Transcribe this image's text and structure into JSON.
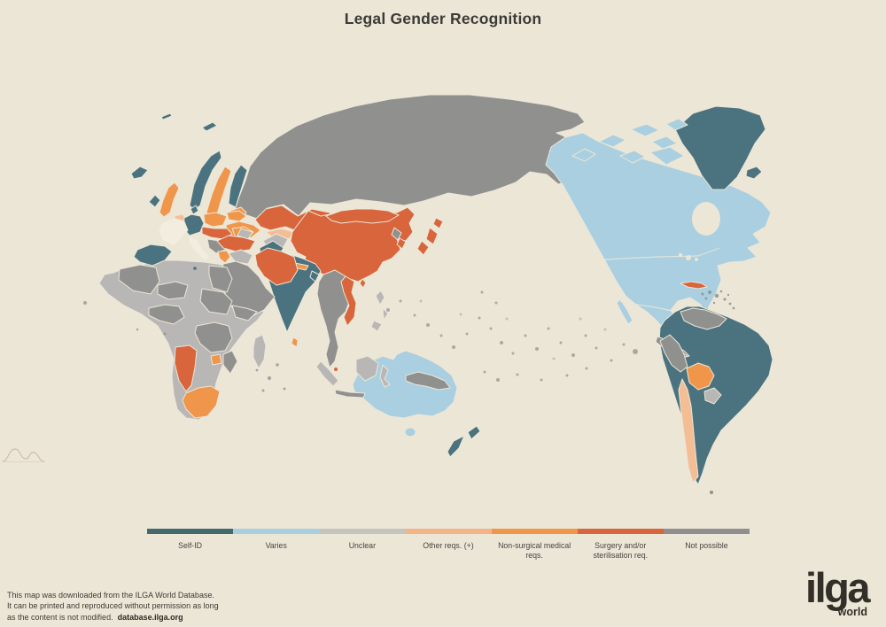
{
  "page": {
    "background": "#ECE6D7"
  },
  "title": "Legal Gender Recognition",
  "legend": {
    "categories": [
      {
        "id": "self_id",
        "label": "Self-ID",
        "color": "#456A6E"
      },
      {
        "id": "varies",
        "label": "Varies",
        "color": "#A8CEDF"
      },
      {
        "id": "unclear",
        "label": "Unclear",
        "color": "#C6C4BE"
      },
      {
        "id": "other_reqs",
        "label": "Other reqs. (+)",
        "color": "#F2B488"
      },
      {
        "id": "non_surgical",
        "label": "Non-surgical medical reqs.",
        "color": "#F0964B"
      },
      {
        "id": "surgery",
        "label": "Surgery and/or sterilisation req.",
        "color": "#D8653B"
      },
      {
        "id": "not_possible",
        "label": "Not possible",
        "color": "#8F8F8F"
      }
    ]
  },
  "map": {
    "colors": {
      "self_id": "#4A737F",
      "varies": "#A9CFE1",
      "unclear": "#B8B7B6",
      "other_reqs": "#F4BE95",
      "non_surgical": "#F0964B",
      "surgery": "#D8653B",
      "not_possible": "#90908F",
      "none": "#F3EDDF"
    },
    "regions": {
      "russia": {
        "name": "Russia",
        "category": "not_possible"
      },
      "kazakhstan": {
        "name": "Kazakhstan",
        "category": "surgery"
      },
      "uzbekistan": {
        "name": "Uzbekistan",
        "category": "other_reqs"
      },
      "kyrgyzstan": {
        "name": "Kyrgyzstan",
        "category": "non_surgical"
      },
      "china": {
        "name": "China",
        "category": "surgery"
      },
      "mongolia": {
        "name": "Mongolia",
        "category": "surgery"
      },
      "japan": {
        "name": "Japan",
        "category": "surgery"
      },
      "south-korea": {
        "name": "South Korea",
        "category": "surgery"
      },
      "north-korea": {
        "name": "North Korea",
        "category": "not_possible"
      },
      "taiwan": {
        "name": "Taiwan",
        "category": "surgery"
      },
      "india": {
        "name": "India",
        "category": "self_id"
      },
      "pakistan": {
        "name": "Pakistan",
        "category": "self_id"
      },
      "bangladesh": {
        "name": "Bangladesh",
        "category": "self_id"
      },
      "nepal": {
        "name": "Nepal",
        "category": "non_surgical"
      },
      "sri-lanka": {
        "name": "Sri Lanka",
        "category": "non_surgical"
      },
      "afghanistan": {
        "name": "Afghanistan",
        "category": "unclear"
      },
      "iran": {
        "name": "Iran",
        "category": "surgery"
      },
      "turkey": {
        "name": "Turkey",
        "category": "surgery"
      },
      "levant": {
        "name": "Levant",
        "category": "unclear"
      },
      "arabia": {
        "name": "Arabian Peninsula",
        "category": "not_possible"
      },
      "caucasus": {
        "name": "Caucasus",
        "category": "unclear"
      },
      "indochina": {
        "name": "Indochina",
        "category": "not_possible"
      },
      "vietnam": {
        "name": "Vietnam",
        "category": "surgery"
      },
      "singapore": {
        "name": "Singapore",
        "category": "surgery"
      },
      "sumatra": {
        "name": "Sumatra",
        "category": "unclear"
      },
      "java": {
        "name": "Java",
        "category": "not_possible"
      },
      "borneo": {
        "name": "Borneo",
        "category": "unclear"
      },
      "sulawesi": {
        "name": "Sulawesi",
        "category": "unclear"
      },
      "new-guinea": {
        "name": "New Guinea",
        "category": "not_possible"
      },
      "philippines": {
        "name": "Philippines",
        "category": "unclear"
      },
      "iceland-west": {
        "name": "Iceland",
        "category": "self_id"
      },
      "svalbard": {
        "name": "Svalbard",
        "category": "self_id"
      },
      "jan-mayen": {
        "name": "Jan Mayen",
        "category": "self_id"
      },
      "norway": {
        "name": "Norway",
        "category": "self_id"
      },
      "sweden": {
        "name": "Sweden",
        "category": "non_surgical"
      },
      "finland": {
        "name": "Finland",
        "category": "self_id"
      },
      "baltics": {
        "name": "Baltic states",
        "category": "non_surgical"
      },
      "uk": {
        "name": "United Kingdom",
        "category": "non_surgical"
      },
      "ireland": {
        "name": "Ireland",
        "category": "self_id"
      },
      "denmark": {
        "name": "Denmark",
        "category": "self_id"
      },
      "germany": {
        "name": "Germany",
        "category": "self_id"
      },
      "benelux": {
        "name": "Benelux",
        "category": "other_reqs"
      },
      "poland": {
        "name": "Poland",
        "category": "non_surgical"
      },
      "belarus": {
        "name": "Belarus",
        "category": "non_surgical"
      },
      "ukraine": {
        "name": "Ukraine",
        "category": "non_surgical"
      },
      "central-europe": {
        "name": "Central Europe",
        "category": "surgery"
      },
      "romania": {
        "name": "Romania",
        "category": "non_surgical"
      },
      "balkans": {
        "name": "Balkans",
        "category": "not_possible"
      },
      "bulgaria": {
        "name": "Bulgaria",
        "category": "surgery"
      },
      "greece": {
        "name": "Greece",
        "category": "non_surgical"
      },
      "france": {
        "name": "France",
        "category": "none"
      },
      "iberia": {
        "name": "Spain and Portugal",
        "category": "self_id"
      },
      "italy": {
        "name": "Italy",
        "category": "none"
      },
      "malta": {
        "name": "Malta",
        "category": "self_id"
      },
      "africa-base": {
        "name": "Africa",
        "category": "unclear"
      },
      "algeria": {
        "name": "Algeria",
        "category": "not_possible"
      },
      "egypt": {
        "name": "Egypt",
        "category": "not_possible"
      },
      "sudan-chad": {
        "name": "Sudan and Chad",
        "category": "not_possible"
      },
      "niger": {
        "name": "Niger",
        "category": "not_possible"
      },
      "west-africa": {
        "name": "West Africa",
        "category": "not_possible"
      },
      "ethiopia": {
        "name": "Ethiopia",
        "category": "not_possible"
      },
      "central-east-africa": {
        "name": "Central-East Africa",
        "category": "not_possible"
      },
      "mozambique": {
        "name": "Mozambique",
        "category": "not_possible"
      },
      "namibia": {
        "name": "Namibia",
        "category": "surgery"
      },
      "south-africa": {
        "name": "South Africa",
        "category": "non_surgical"
      },
      "zimbabwe": {
        "name": "Zimbabwe",
        "category": "non_surgical"
      },
      "madagascar": {
        "name": "Madagascar",
        "category": "unclear"
      },
      "greenland": {
        "name": "Greenland",
        "category": "self_id"
      },
      "iceland-east": {
        "name": "Iceland (east copy)",
        "category": "self_id"
      },
      "arctic-islands": {
        "name": "Canadian Arctic islands",
        "category": "varies"
      },
      "north-america": {
        "name": "Canada, USA and Mexico",
        "category": "varies"
      },
      "baja": {
        "name": "Baja California",
        "category": "varies"
      },
      "central-america": {
        "name": "Central America",
        "category": "not_possible"
      },
      "panama": {
        "name": "Panama",
        "category": "surgery"
      },
      "cuba": {
        "name": "Cuba",
        "category": "surgery"
      },
      "caribbean": {
        "name": "Caribbean islands",
        "category": "not_possible"
      },
      "south-america": {
        "name": "Brazil, Argentina, Colombia",
        "category": "self_id"
      },
      "venezuela-guyanas": {
        "name": "Venezuela and Guyanas",
        "category": "not_possible"
      },
      "peru": {
        "name": "Peru",
        "category": "not_possible"
      },
      "bolivia": {
        "name": "Bolivia",
        "category": "non_surgical"
      },
      "paraguay": {
        "name": "Paraguay",
        "category": "unclear"
      },
      "chile": {
        "name": "Chile",
        "category": "other_reqs"
      },
      "falklands": {
        "name": "Falkland Islands",
        "category": "not_possible"
      },
      "australia": {
        "name": "Australia",
        "category": "varies"
      },
      "tasmania": {
        "name": "Tasmania",
        "category": "varies"
      },
      "new-zealand": {
        "name": "New Zealand",
        "category": "self_id"
      },
      "pacific-islands": {
        "name": "Pacific islands",
        "category": "not_possible"
      },
      "pacific-islands-light": {
        "name": "Pacific islands (light)",
        "category": "unclear"
      },
      "indian-ocean-islands": {
        "name": "Indian Ocean islands",
        "category": "not_possible"
      },
      "atlantic-islands": {
        "name": "Atlantic islands",
        "category": "not_possible"
      }
    }
  },
  "footer": {
    "line1": "This map was downloaded from the ILGA World Database.",
    "line2": "It can be printed and reproduced without permission as long",
    "line3": "as the content is not modified.",
    "link": "database.ilga.org"
  },
  "logo": {
    "text": "ilga",
    "subtext": "world"
  }
}
